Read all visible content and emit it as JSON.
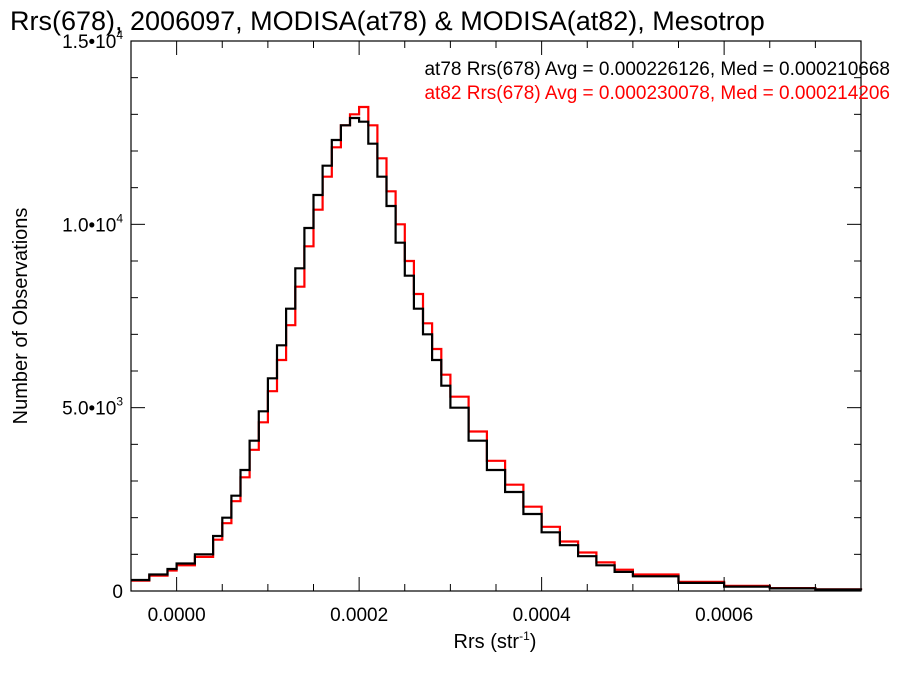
{
  "chart_data": {
    "type": "line",
    "title": "Rrs(678), 2006097, MODISA(at78) & MODISA(at82), Mesotrop",
    "xlabel": "Rrs (str",
    "xlabel_sup": "-1",
    "xlabel_close": ")",
    "ylabel": "Number of Observations",
    "xlim": [
      -5e-05,
      0.00075
    ],
    "ylim": [
      0,
      15000
    ],
    "x_ticks": [
      {
        "value": 0.0,
        "label": "0.0000"
      },
      {
        "value": 0.0002,
        "label": "0.0002"
      },
      {
        "value": 0.0004,
        "label": "0.0004"
      },
      {
        "value": 0.0006,
        "label": "0.0006"
      }
    ],
    "y_ticks": [
      {
        "value": 0,
        "label": "0",
        "sup": ""
      },
      {
        "value": 5000,
        "label": "5.0•10",
        "sup": "3"
      },
      {
        "value": 10000,
        "label": "1.0•10",
        "sup": "4"
      },
      {
        "value": 15000,
        "label": "1.5•10",
        "sup": "4"
      }
    ],
    "grid": false,
    "legend_position": "top-right",
    "series": [
      {
        "name": "at78 Rrs(678) Avg = 0.000226126, Med = 0.000210668",
        "color": "#000000",
        "x": [
          -5e-05,
          -3e-05,
          -1e-05,
          0.0,
          2e-05,
          4e-05,
          5e-05,
          6e-05,
          7e-05,
          8e-05,
          9e-05,
          0.0001,
          0.00011,
          0.00012,
          0.00013,
          0.00014,
          0.00015,
          0.00016,
          0.00017,
          0.00018,
          0.00019,
          0.0002,
          0.00021,
          0.00022,
          0.00023,
          0.00024,
          0.00025,
          0.00026,
          0.00027,
          0.00028,
          0.00029,
          0.0003,
          0.00032,
          0.00034,
          0.00036,
          0.00038,
          0.0004,
          0.00042,
          0.00044,
          0.00046,
          0.00048,
          0.0005,
          0.00055,
          0.0006,
          0.00065,
          0.0007,
          0.00075
        ],
        "y": [
          300,
          450,
          600,
          750,
          1000,
          1500,
          2000,
          2600,
          3300,
          4100,
          4900,
          5800,
          6700,
          7700,
          8800,
          9900,
          10800,
          11600,
          12300,
          12700,
          12900,
          12800,
          12200,
          11300,
          10500,
          9500,
          8600,
          7700,
          7000,
          6300,
          5600,
          5000,
          4100,
          3300,
          2700,
          2100,
          1600,
          1250,
          950,
          700,
          520,
          400,
          220,
          120,
          70,
          40,
          20
        ]
      },
      {
        "name": "at82 Rrs(678) Avg = 0.000230078, Med = 0.000214206",
        "color": "#ff0000",
        "x": [
          -5e-05,
          -3e-05,
          -1e-05,
          0.0,
          2e-05,
          4e-05,
          5e-05,
          6e-05,
          7e-05,
          8e-05,
          9e-05,
          0.0001,
          0.00011,
          0.00012,
          0.00013,
          0.00014,
          0.00015,
          0.00016,
          0.00017,
          0.00018,
          0.00019,
          0.0002,
          0.00021,
          0.00022,
          0.00023,
          0.00024,
          0.00025,
          0.00026,
          0.00027,
          0.00028,
          0.00029,
          0.0003,
          0.00032,
          0.00034,
          0.00036,
          0.00038,
          0.0004,
          0.00042,
          0.00044,
          0.00046,
          0.00048,
          0.0005,
          0.00055,
          0.0006,
          0.00065,
          0.0007,
          0.00075
        ],
        "y": [
          280,
          420,
          560,
          700,
          930,
          1400,
          1850,
          2450,
          3100,
          3850,
          4600,
          5450,
          6300,
          7250,
          8300,
          9400,
          10400,
          11300,
          12100,
          12700,
          13000,
          13200,
          12700,
          11800,
          10900,
          10000,
          9000,
          8100,
          7300,
          6600,
          5900,
          5300,
          4350,
          3550,
          2900,
          2300,
          1750,
          1350,
          1050,
          780,
          580,
          450,
          250,
          140,
          80,
          45,
          25
        ]
      }
    ]
  }
}
